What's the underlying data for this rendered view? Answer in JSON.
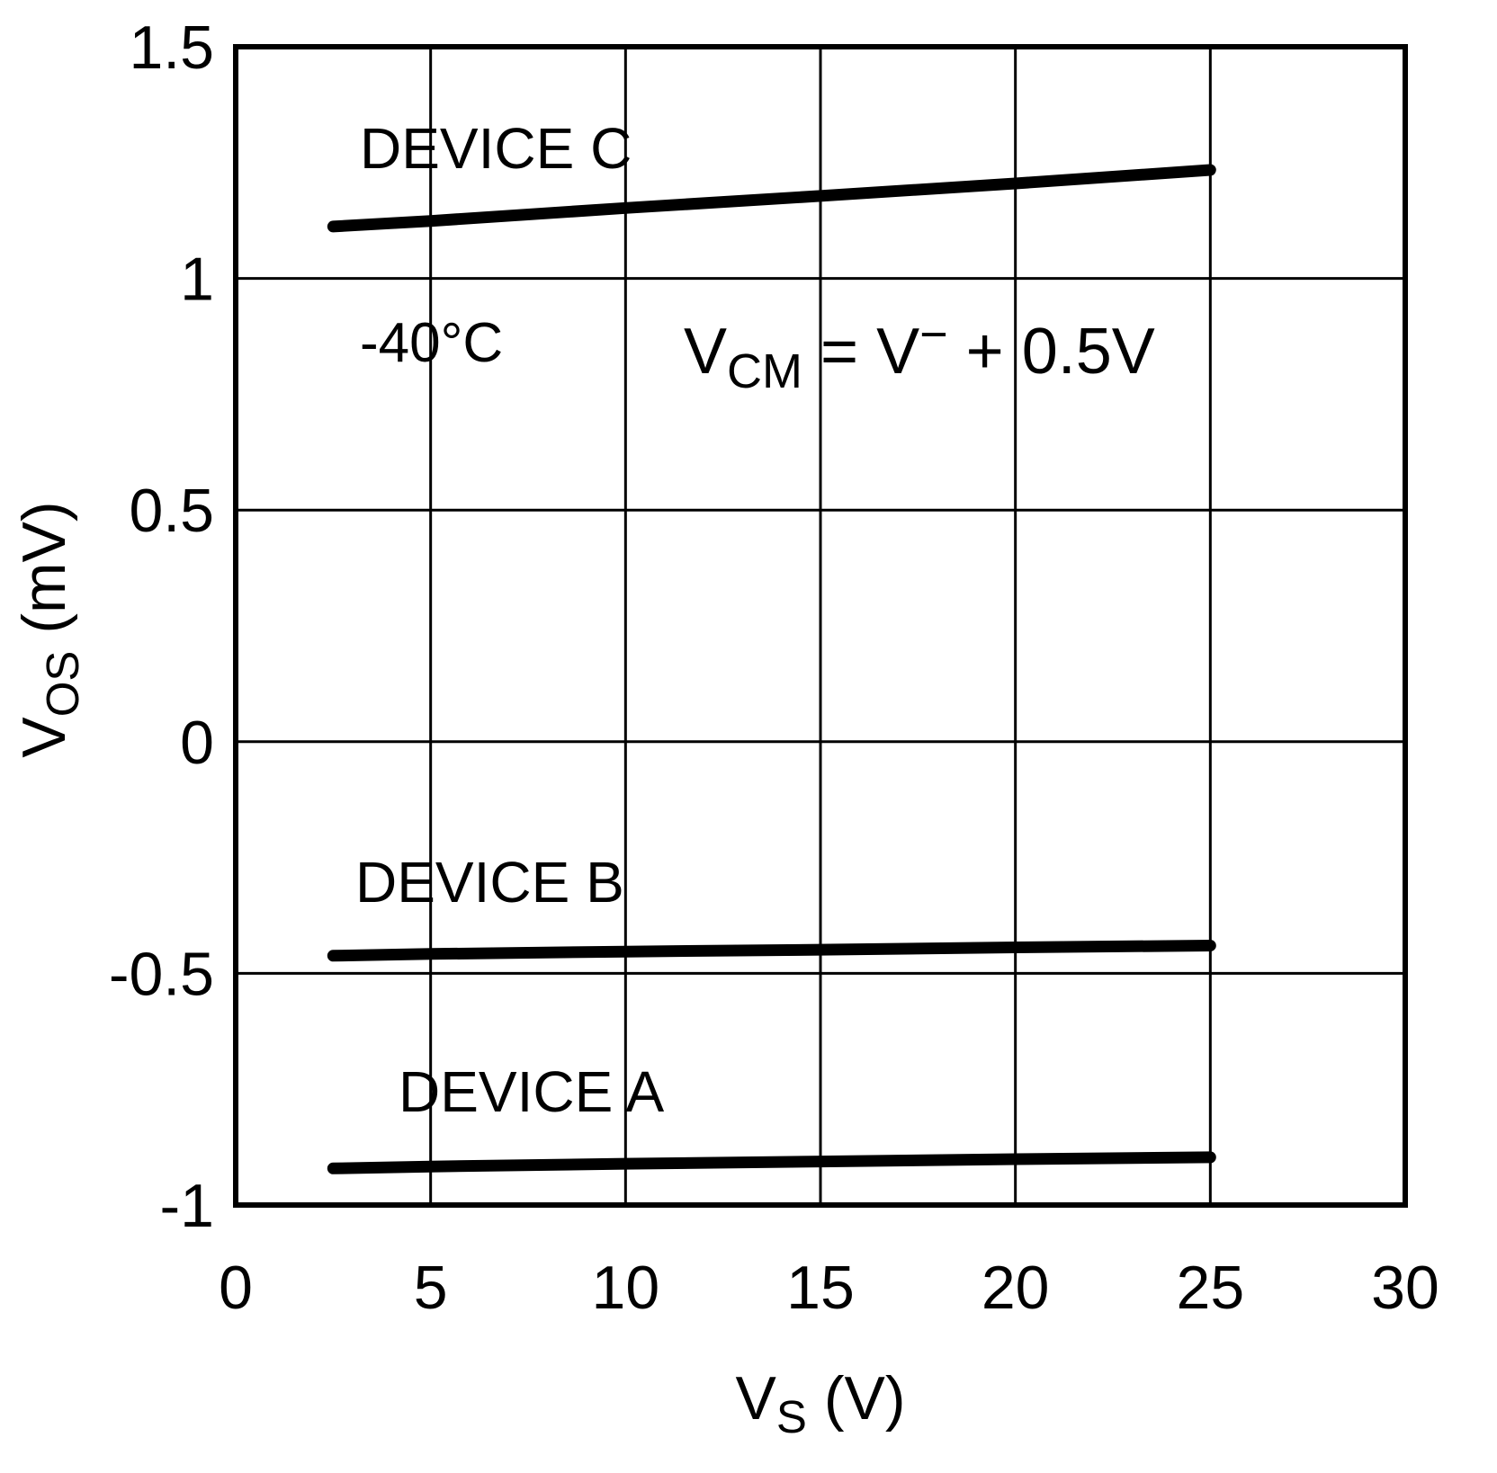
{
  "figure": {
    "background": "#ffffff",
    "ink": "#000000"
  },
  "chart_data": {
    "type": "line",
    "title": "",
    "xlabel": "VS (V)",
    "ylabel": "VOS (mV)",
    "xlabel_parts": [
      {
        "t": "V"
      },
      {
        "t": "S",
        "shift": "sub"
      },
      {
        "t": " (V)"
      }
    ],
    "ylabel_parts": [
      {
        "t": "V"
      },
      {
        "t": "OS",
        "shift": "sub"
      },
      {
        "t": " (mV)"
      }
    ],
    "xlim": [
      0,
      30
    ],
    "ylim": [
      -1,
      1.5
    ],
    "grid": true,
    "legend_position": "inline-labels",
    "x_ticks": [
      {
        "v": 0,
        "label": "0"
      },
      {
        "v": 5,
        "label": "5"
      },
      {
        "v": 10,
        "label": "10"
      },
      {
        "v": 15,
        "label": "15"
      },
      {
        "v": 20,
        "label": "20"
      },
      {
        "v": 25,
        "label": "25"
      },
      {
        "v": 30,
        "label": "30"
      }
    ],
    "y_ticks": [
      {
        "v": 1.5,
        "label": "1.5"
      },
      {
        "v": 1,
        "label": "1"
      },
      {
        "v": 0.5,
        "label": "0.5"
      },
      {
        "v": 0,
        "label": "0"
      },
      {
        "v": -0.5,
        "label": "-0.5"
      },
      {
        "v": -1,
        "label": "-1"
      }
    ],
    "annotations": [
      {
        "id": "temperature",
        "text": "-40°C",
        "parts": [
          {
            "t": "-40°C"
          }
        ]
      },
      {
        "id": "vcm-condition",
        "text": "VCM = V− + 0.5V",
        "parts": [
          {
            "t": "V"
          },
          {
            "t": "CM",
            "shift": "sub"
          },
          {
            "t": " = V"
          },
          {
            "t": "−",
            "shift": "sup"
          },
          {
            "t": " + 0.5V"
          }
        ]
      }
    ],
    "series": [
      {
        "name": "DEVICE C",
        "points": [
          [
            2.5,
            1.112
          ],
          [
            5,
            1.124
          ],
          [
            10,
            1.152
          ],
          [
            15,
            1.178
          ],
          [
            20,
            1.205
          ],
          [
            25,
            1.234
          ]
        ]
      },
      {
        "name": "DEVICE B",
        "points": [
          [
            2.5,
            -0.462
          ],
          [
            5,
            -0.458
          ],
          [
            10,
            -0.453
          ],
          [
            15,
            -0.449
          ],
          [
            20,
            -0.444
          ],
          [
            25,
            -0.44
          ]
        ]
      },
      {
        "name": "DEVICE A",
        "points": [
          [
            2.5,
            -0.921
          ],
          [
            5,
            -0.917
          ],
          [
            10,
            -0.911
          ],
          [
            15,
            -0.906
          ],
          [
            20,
            -0.901
          ],
          [
            25,
            -0.897
          ]
        ]
      }
    ],
    "colors": {
      "line": "#000000",
      "grid": "#000000",
      "background": "#ffffff"
    }
  }
}
